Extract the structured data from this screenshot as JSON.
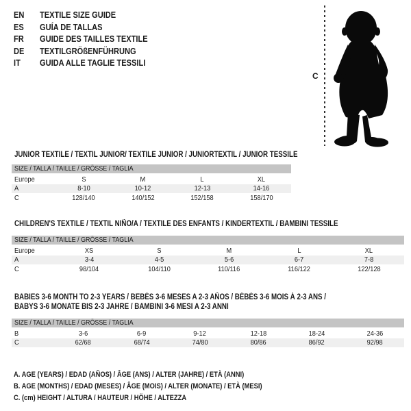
{
  "languages": [
    {
      "code": "EN",
      "title": "TEXTILE SIZE GUIDE"
    },
    {
      "code": "ES",
      "title": "GUÍA DE TALLAS"
    },
    {
      "code": "FR",
      "title": "GUIDE DES TAILLES TEXTILE"
    },
    {
      "code": "DE",
      "title": "TEXTILGRÖßENFÜHRUNG"
    },
    {
      "code": "IT",
      "title": "GUIDA ALLE TAGLIE TESSILI"
    }
  ],
  "figure": {
    "height_label": "C"
  },
  "sections": [
    {
      "title_lines": [
        "JUNIOR TEXTILE / TEXTIL JUNIOR/ TEXTILE JUNIOR / JUNIORTEXTIL / JUNIOR TESSILE"
      ],
      "size_header": "SIZE / TALLA / TAILLE / GRÖSSE / TAGLIA",
      "rows": [
        [
          "Europe",
          "S",
          "M",
          "L",
          "XL"
        ],
        [
          "A",
          "8-10",
          "10-12",
          "12-13",
          "14-16"
        ],
        [
          "C",
          "128/140",
          "140/152",
          "152/158",
          "158/170"
        ]
      ]
    },
    {
      "title_lines": [
        "CHILDREN'S TEXTILE / TEXTIL NIÑO/A / TEXTILE DES ENFANTS / KINDERTEXTIL / BAMBINI TESSILE"
      ],
      "size_header": "SIZE / TALLA / TAILLE / GRÖSSE / TAGLIA",
      "rows": [
        [
          "Europe",
          "XS",
          "S",
          "M",
          "L",
          "XL"
        ],
        [
          "A",
          "3-4",
          "4-5",
          "5-6",
          "6-7",
          "7-8"
        ],
        [
          "C",
          "98/104",
          "104/110",
          "110/116",
          "116/122",
          "122/128"
        ]
      ]
    },
    {
      "title_lines": [
        "BABIES 3-6 MONTH TO 2-3 YEARS / BEBÉS 3-6 MESES A 2-3 AÑOS / BÉBÉS 3-6 MOIS À 2-3 ANS /",
        "BABYS 3-6 MONATE BIS 2-3 JAHRE / BAMBINI 3-6 MESI A 2-3 ANNI"
      ],
      "size_header": "SIZE / TALLA / TAILLE / GRÖSSE / TAGLIA",
      "rows": [
        [
          "B",
          "3-6",
          "6-9",
          "9-12",
          "12-18",
          "18-24",
          "24-36"
        ],
        [
          "C",
          "62/68",
          "68/74",
          "74/80",
          "80/86",
          "86/92",
          "92/98"
        ]
      ]
    }
  ],
  "notes": [
    "A. AGE (YEARS) / EDAD (AÑOS) / ÂGE (ANS) / ALTER (JAHRE) / ETÀ (ANNI)",
    "B. AGE (MONTHS) / EDAD (MESES) / ÂGE (MOIS) / ALTER (MONATE) / ETÀ (MESI)",
    "C. (cm) HEIGHT / ALTURA / HAUTEUR / HÖHE / ALTEZZA"
  ],
  "colors": {
    "header_bar": "#c4c4c4",
    "stripe": "#efefef",
    "text": "#1a1a1a",
    "silhouette": "#0a0a0a"
  }
}
